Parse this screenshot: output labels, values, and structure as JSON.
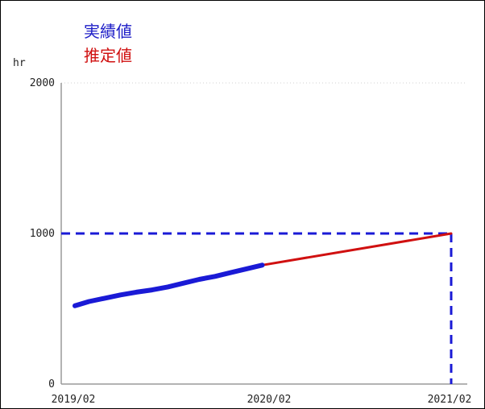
{
  "chart_data": {
    "type": "line",
    "ylabel": "hr",
    "ylim": [
      0,
      2000
    ],
    "yticks": [
      "0",
      "1000",
      "2000"
    ],
    "xticks": [
      "2019/02",
      "2020/02",
      "2021/02"
    ],
    "legend": [
      {
        "name": "実績値",
        "color": "#2020c8"
      },
      {
        "name": "推定値",
        "color": "#d01010"
      }
    ],
    "series": [
      {
        "name": "実績値",
        "color": "#1a1ad6",
        "x": [
          0.1,
          1.0,
          2.0,
          3.0,
          4.0,
          5.0,
          6.0,
          7.0,
          8.0,
          9.0,
          10.0,
          11.0,
          12.0
        ],
        "values": [
          520,
          548,
          570,
          592,
          610,
          625,
          645,
          670,
          695,
          715,
          740,
          765,
          790
        ]
      },
      {
        "name": "推定値",
        "color": "#d01010",
        "x": [
          12.0,
          24.0
        ],
        "values": [
          790,
          1000
        ]
      }
    ],
    "reference_lines": {
      "target_value": 1000,
      "target_date_month": 24,
      "color": "#1a1ad6",
      "style": "dashed"
    }
  }
}
